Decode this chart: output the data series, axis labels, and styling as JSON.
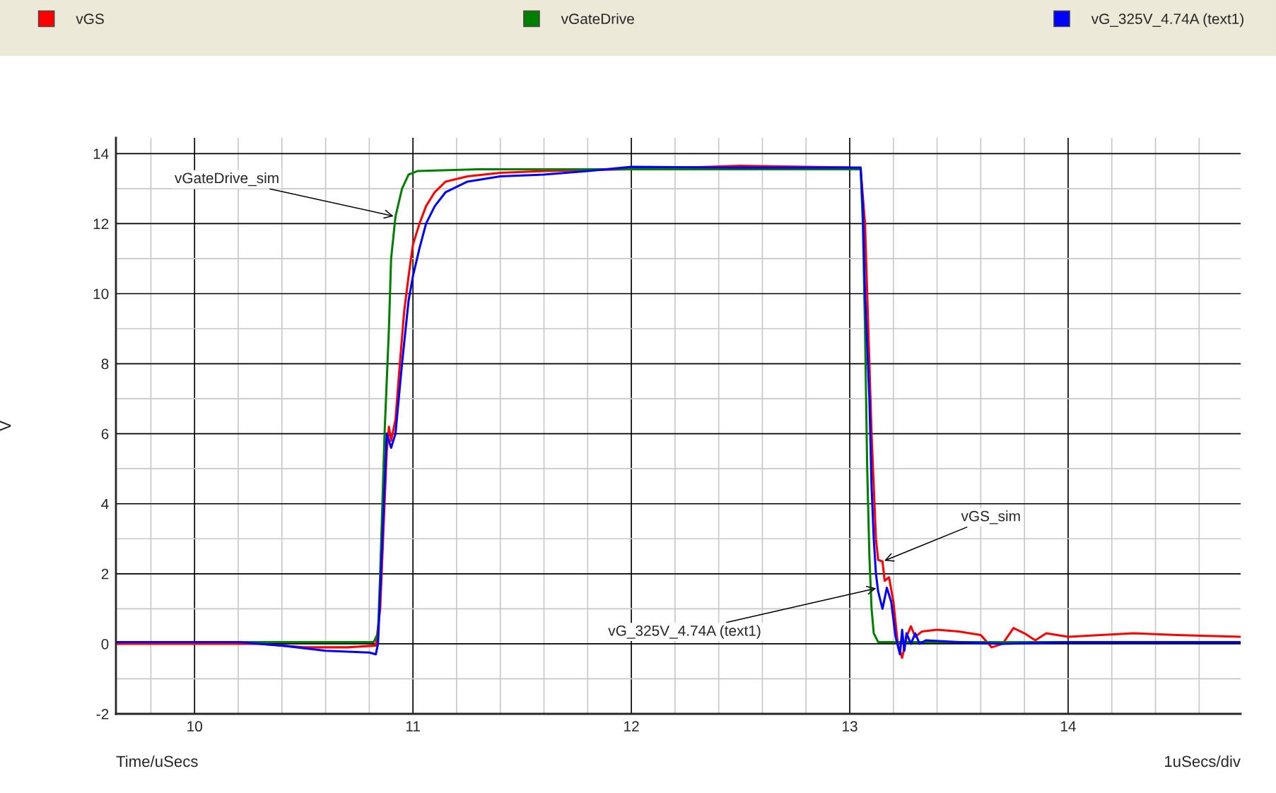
{
  "chart_data": {
    "type": "line",
    "xlabel": "Time/uSecs",
    "ylabel": "V",
    "xlim": [
      9.64,
      14.79
    ],
    "ylim": [
      -2,
      14.45
    ],
    "xticks": [
      10,
      11,
      12,
      13,
      14
    ],
    "yticks": [
      -2,
      0,
      2,
      4,
      6,
      8,
      10,
      12,
      14
    ],
    "grid": true,
    "legend": "top",
    "line_style": "solid",
    "marker": "none",
    "series": [
      {
        "name": "vGS",
        "color": "#ff0000",
        "x": [
          9.64,
          10.0,
          10.3,
          10.5,
          10.7,
          10.83,
          10.85,
          10.87,
          10.88,
          10.89,
          10.9,
          10.92,
          10.94,
          10.96,
          10.98,
          11.0,
          11.03,
          11.06,
          11.1,
          11.15,
          11.25,
          11.4,
          11.6,
          12.0,
          12.5,
          13.0,
          13.05,
          13.07,
          13.08,
          13.09,
          13.1,
          13.11,
          13.12,
          13.13,
          13.15,
          13.16,
          13.18,
          13.2,
          13.22,
          13.24,
          13.26,
          13.28,
          13.3,
          13.33,
          13.4,
          13.5,
          13.6,
          13.65,
          13.7,
          13.75,
          13.8,
          13.85,
          13.9,
          14.0,
          14.3,
          14.5,
          14.79
        ],
        "values": [
          0,
          0,
          0,
          -0.1,
          -0.1,
          -0.05,
          1,
          4,
          5.5,
          6.2,
          5.8,
          6.4,
          8,
          9.5,
          10.5,
          11.4,
          12.0,
          12.5,
          12.9,
          13.2,
          13.35,
          13.45,
          13.5,
          13.55,
          13.65,
          13.6,
          13.55,
          12,
          10,
          8,
          6,
          4.5,
          3,
          2.4,
          2.35,
          1.8,
          1.9,
          1.2,
          0,
          -0.4,
          0.2,
          0.5,
          0.2,
          0.35,
          0.4,
          0.35,
          0.25,
          -0.1,
          0,
          0.45,
          0.3,
          0.1,
          0.3,
          0.2,
          0.3,
          0.25,
          0.2
        ]
      },
      {
        "name": "vGateDrive",
        "color": "#008000",
        "x": [
          9.64,
          10.82,
          10.84,
          10.85,
          10.86,
          10.87,
          10.88,
          10.89,
          10.9,
          10.92,
          10.95,
          10.98,
          11.02,
          11.3,
          13.05,
          13.06,
          13.07,
          13.08,
          13.09,
          13.1,
          13.11,
          13.13,
          14.79
        ],
        "values": [
          0.05,
          0.05,
          0.3,
          2,
          4,
          6,
          7.5,
          9,
          11,
          12.2,
          13.0,
          13.4,
          13.5,
          13.55,
          13.55,
          12,
          9,
          5,
          2.5,
          1,
          0.3,
          0.05,
          0.05
        ]
      },
      {
        "name": "vG_325V_4.74A (text1)",
        "color": "#0000ff",
        "x": [
          9.64,
          10.0,
          10.2,
          10.4,
          10.6,
          10.8,
          10.83,
          10.84,
          10.86,
          10.88,
          10.9,
          10.92,
          10.95,
          10.98,
          11.0,
          11.03,
          11.06,
          11.1,
          11.15,
          11.25,
          11.4,
          11.6,
          11.8,
          12.0,
          12.5,
          13.05,
          13.06,
          13.07,
          13.09,
          13.1,
          13.11,
          13.12,
          13.13,
          13.15,
          13.17,
          13.19,
          13.21,
          13.23,
          13.24,
          13.25,
          13.26,
          13.28,
          13.3,
          13.32,
          13.35,
          13.5,
          13.7,
          14.0,
          14.79
        ],
        "values": [
          0.05,
          0.05,
          0.05,
          -0.05,
          -0.2,
          -0.25,
          -0.3,
          0,
          3,
          6.0,
          5.6,
          6.0,
          8,
          9.8,
          10.5,
          11.3,
          12.0,
          12.5,
          12.9,
          13.2,
          13.35,
          13.4,
          13.5,
          13.62,
          13.6,
          13.6,
          12.5,
          10,
          7,
          4.5,
          3,
          2,
          1.5,
          1.0,
          1.6,
          1.2,
          0.2,
          -0.3,
          0.4,
          -0.2,
          0.3,
          0,
          0.3,
          0,
          0.1,
          0.05,
          0,
          0.05,
          0.05
        ]
      }
    ],
    "annotations": [
      {
        "text": "vGateDrive_sim",
        "x": 10.92,
        "y": 12.2
      },
      {
        "text": "vGS_sim",
        "x": 13.15,
        "y": 2.35
      },
      {
        "text": "vG_325V_4.74A (text1)",
        "x": 13.13,
        "y": 1.6
      },
      "1uSecs/div"
    ]
  }
}
